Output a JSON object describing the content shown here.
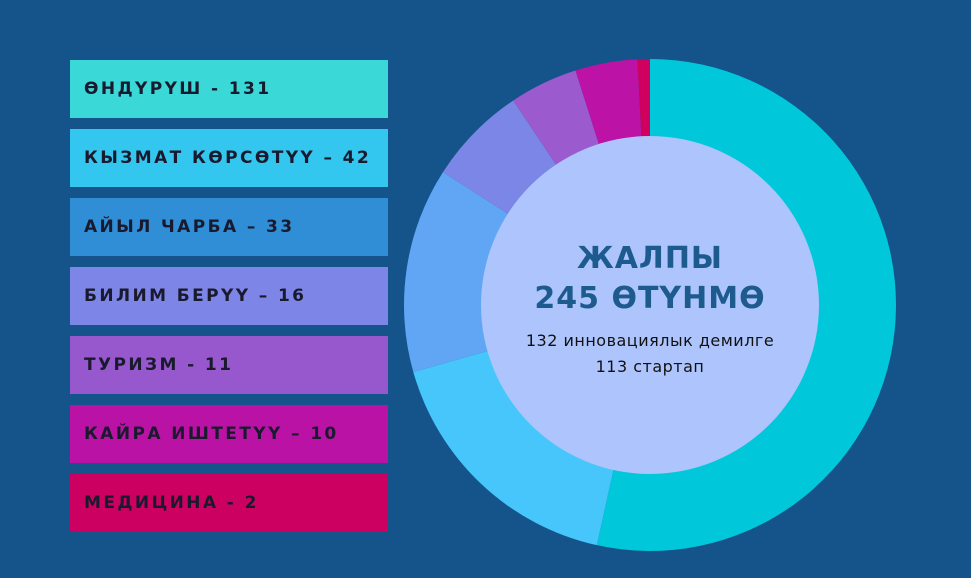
{
  "chart_data": {
    "type": "donut",
    "legend_position": "left",
    "center": {
      "title_line1": "ЖАЛПЫ",
      "title_line2": "245 ӨТҮНМӨ",
      "sub_line1": "132 инновациялык демилге",
      "sub_line2": "113 стартап"
    },
    "slices": [
      {
        "label": "ӨНДҮРҮШ - 131",
        "value": 131,
        "legend_color": "#3bd8d8",
        "ring_color": "#00c8da"
      },
      {
        "label": "КЫЗМАТ КӨРСӨТҮҮ – 42",
        "value": 42,
        "legend_color": "#33c6ee",
        "ring_color": "#46c6fa"
      },
      {
        "label": "АЙЫЛ ЧАРБА – 33",
        "value": 33,
        "legend_color": "#2f8ed6",
        "ring_color": "#60a6f4"
      },
      {
        "label": "БИЛИМ БЕРҮҮ – 16",
        "value": 16,
        "legend_color": "#7d86e6",
        "ring_color": "#7c86e6"
      },
      {
        "label": "ТУРИЗМ - 11",
        "value": 11,
        "legend_color": "#9658cc",
        "ring_color": "#9c5acf"
      },
      {
        "label": "КАЙРА ИШТЕТҮҮ – 10",
        "value": 10,
        "legend_color": "#bb12a6",
        "ring_color": "#bd12a6"
      },
      {
        "label": "МЕДИЦИНА - 2",
        "value": 2,
        "legend_color": "#cc0060",
        "ring_color": "#d0005e"
      }
    ],
    "inner_fill": "#adc4fc"
  }
}
